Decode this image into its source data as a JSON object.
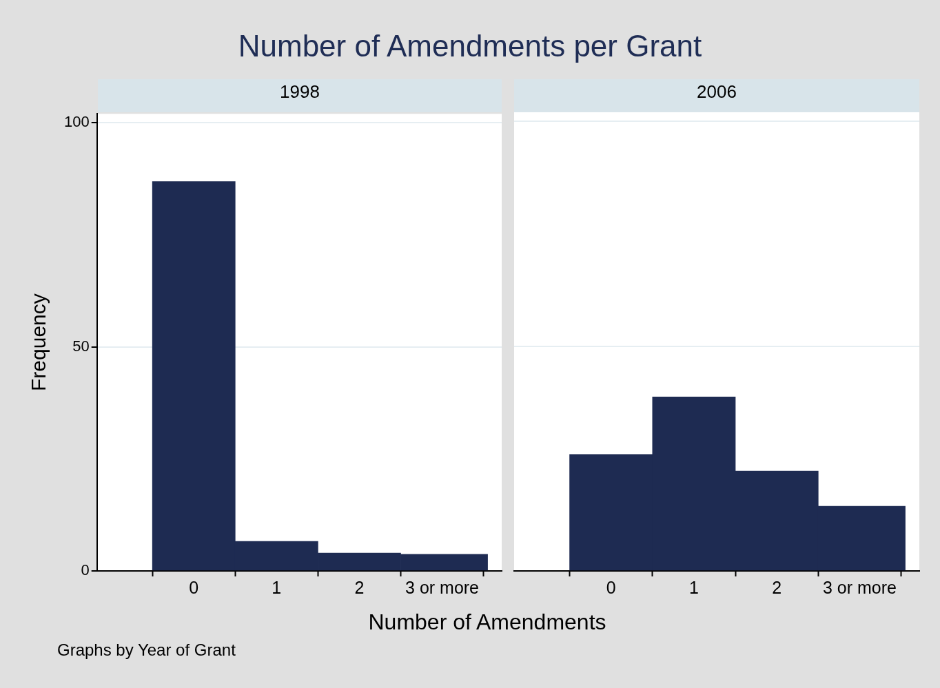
{
  "chart_data": [
    {
      "type": "histogram",
      "title": "Number of Amendments per Grant",
      "subtitle": "1998",
      "xlabel": "Number of Amendments",
      "ylabel": "Frequency",
      "annotations": [
        "Graphs by Year of Grant"
      ],
      "bins": [
        -0.5,
        0.5,
        1.5,
        2.5,
        3.55
      ],
      "values": [
        86.9,
        6.6,
        4.0,
        3.7
      ],
      "color": "#1e2b52",
      "xlim": [
        -1.17,
        3.72
      ],
      "xticks": [
        0,
        1,
        2,
        {
          "value": 3,
          "label": "3 or more"
        }
      ],
      "ylim": [
        0,
        102
      ],
      "yticks": [
        0,
        50,
        100
      ],
      "grid": "y"
    },
    {
      "type": "histogram",
      "subtitle": "2006",
      "bins": [
        -0.5,
        0.5,
        1.5,
        2.5,
        3.55
      ],
      "values": [
        25.9,
        38.7,
        22.2,
        14.4
      ],
      "color": "#1e2b52",
      "xlim": [
        -1.17,
        3.72
      ],
      "xticks": [
        0,
        1,
        2,
        {
          "value": 3,
          "label": "3 or more"
        }
      ],
      "ylim": [
        0,
        102
      ],
      "yticks": [
        0,
        50,
        100
      ],
      "grid": "y",
      "tick_labels": "x"
    }
  ]
}
